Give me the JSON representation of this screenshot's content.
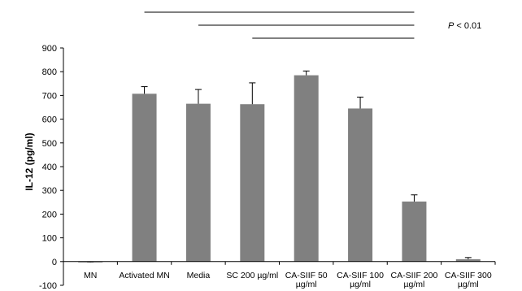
{
  "chart_data": {
    "type": "bar",
    "title": "",
    "xlabel": "",
    "ylabel": "IL-12 (pg/ml)",
    "ylim": [
      -100,
      900
    ],
    "yticks": [
      -100,
      0,
      100,
      200,
      300,
      400,
      500,
      600,
      700,
      800,
      900
    ],
    "grid": false,
    "bar_color": "#808080",
    "categories": [
      [
        "MN"
      ],
      [
        "Activated MN"
      ],
      [
        "Media"
      ],
      [
        "SC 200 µg/ml"
      ],
      [
        "CA-SIIF 50",
        "µg/ml"
      ],
      [
        "CA-SIIF 100",
        "µg/ml"
      ],
      [
        "CA-SIIF 200",
        "µg/ml"
      ],
      [
        "CA-SIIF 300",
        "µg/ml"
      ]
    ],
    "values": [
      -3,
      707,
      665,
      663,
      785,
      645,
      253,
      10
    ],
    "errors": [
      2,
      30,
      60,
      90,
      18,
      48,
      28,
      7
    ],
    "significance": {
      "label_italic": "P",
      "label_rest": " < 0.01",
      "lines": [
        {
          "from": 1,
          "to": 6
        },
        {
          "from": 2,
          "to": 6
        },
        {
          "from": 3,
          "to": 6
        }
      ]
    }
  }
}
